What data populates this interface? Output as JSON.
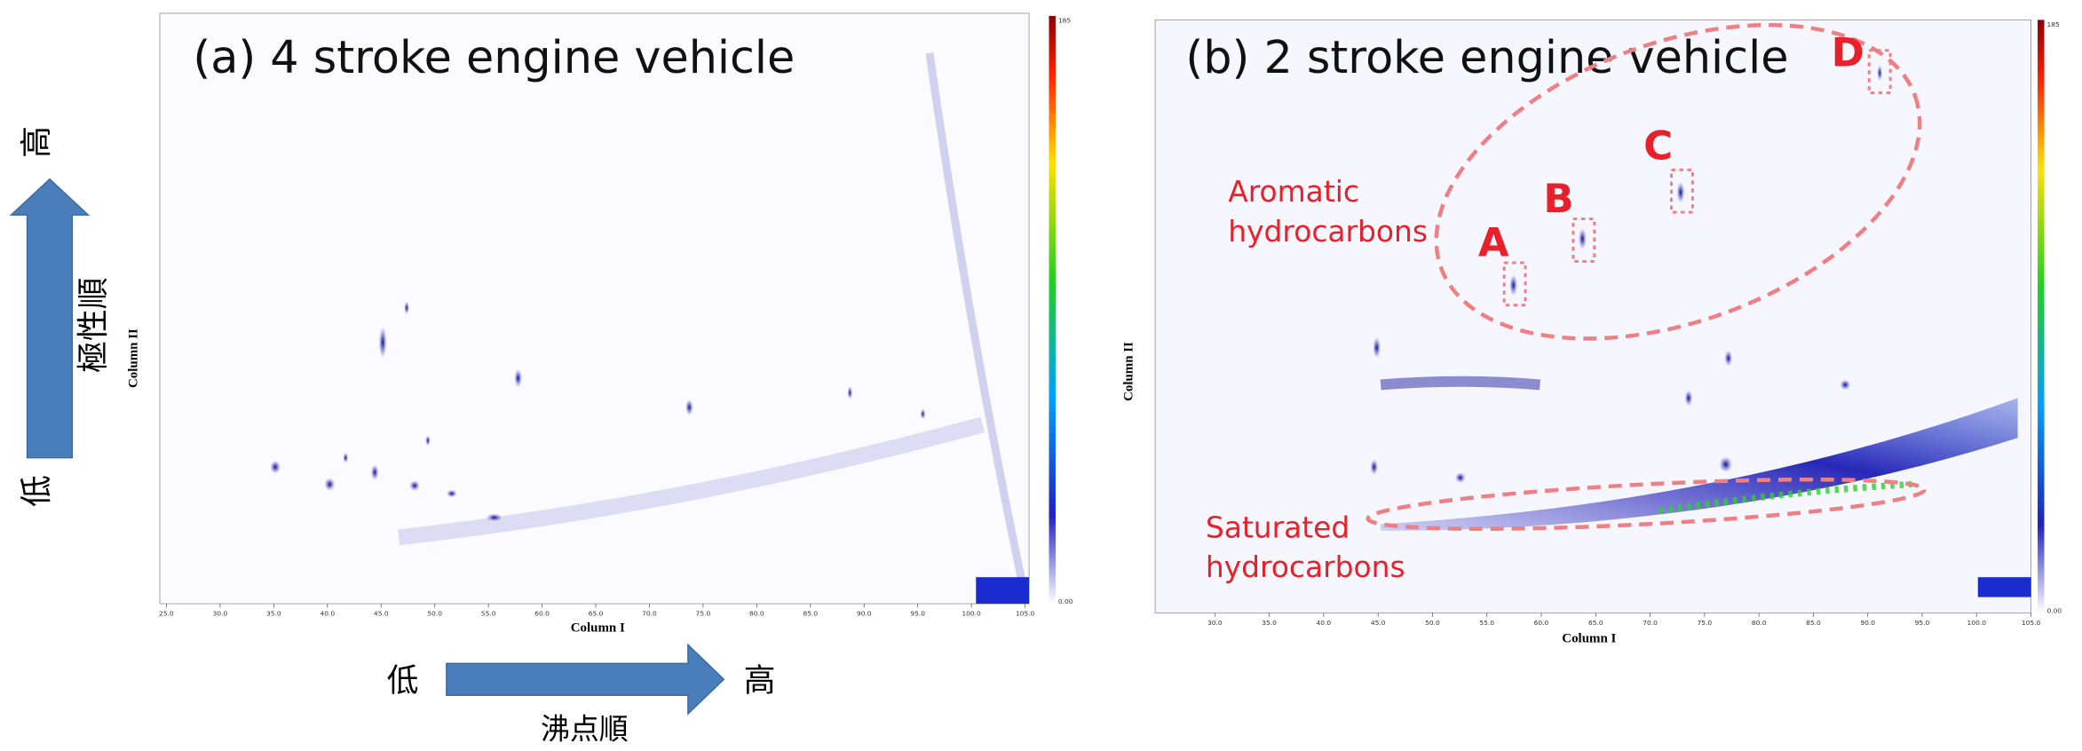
{
  "panels": [
    {
      "title": "(a) 4 stroke engine vehicle",
      "x_axis_label": "Column I",
      "y_axis_label": "Column II",
      "x_ticks": [
        "25.0",
        "30.0",
        "35.0",
        "40.0",
        "45.0",
        "50.0",
        "55.0",
        "60.0",
        "65.0",
        "70.0",
        "75.0",
        "80.0",
        "85.0",
        "90.0",
        "95.0",
        "100.0",
        "105.0"
      ],
      "colorbar_labels": [
        "185",
        "0.00"
      ]
    },
    {
      "title": "(b) 2 stroke engine vehicle",
      "x_axis_label": "Column I",
      "y_axis_label": "Column II",
      "x_ticks": [
        "30.0",
        "35.0",
        "40.0",
        "45.0",
        "50.0",
        "55.0",
        "60.0",
        "65.0",
        "70.0",
        "75.0",
        "80.0",
        "85.0",
        "90.0",
        "95.0",
        "100.0",
        "105.0"
      ],
      "colorbar_labels": [
        "185",
        "0.00"
      ],
      "peak_labels": [
        "A",
        "B",
        "C",
        "D"
      ],
      "regions": [
        {
          "lines": [
            "Aromatic",
            "hydrocarbons"
          ]
        },
        {
          "lines": [
            "Saturated",
            "hydrocarbons"
          ]
        }
      ]
    }
  ],
  "guide": {
    "polarity_high": "高",
    "polarity_order": "極性順",
    "polarity_low": "低",
    "bp_low": "低",
    "bp_order": "沸点順",
    "bp_high": "高"
  }
}
